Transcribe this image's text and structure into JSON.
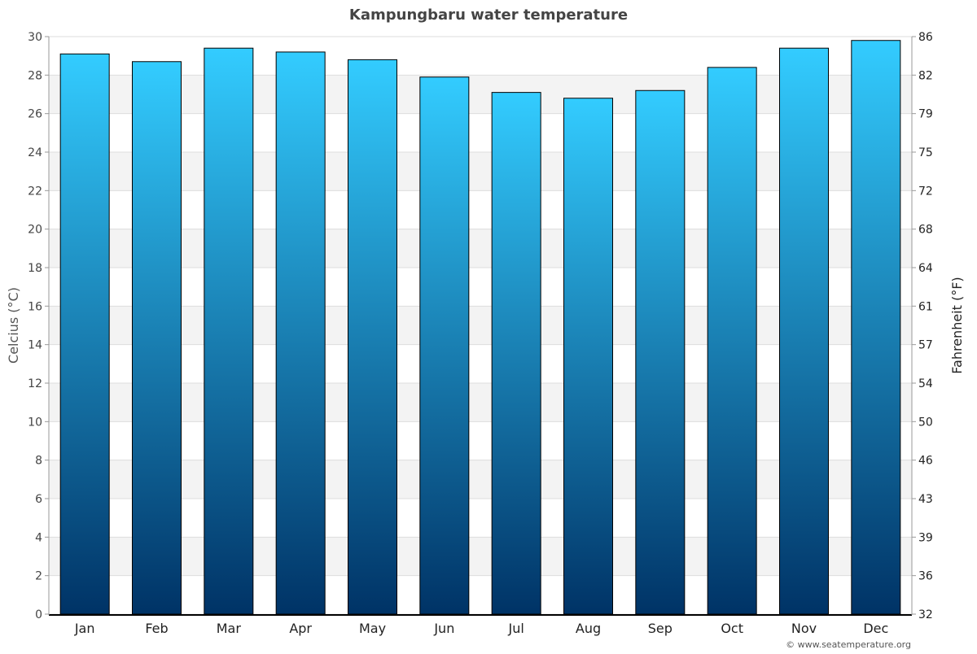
{
  "chart_data": {
    "type": "bar",
    "title": "Kampungbaru water temperature",
    "ylabel": "Celcius (°C)",
    "y2label": "Fahrenheit (°F)",
    "categories": [
      "Jan",
      "Feb",
      "Mar",
      "Apr",
      "May",
      "Jun",
      "Jul",
      "Aug",
      "Sep",
      "Oct",
      "Nov",
      "Dec"
    ],
    "values": [
      29.1,
      28.7,
      29.4,
      29.2,
      28.8,
      27.9,
      27.1,
      26.8,
      27.2,
      28.4,
      29.4,
      29.8
    ],
    "ylim": [
      0,
      30
    ],
    "yticks": [
      "0",
      "2",
      "4",
      "6",
      "8",
      "10",
      "12",
      "14",
      "16",
      "18",
      "20",
      "22",
      "24",
      "26",
      "28",
      "30"
    ],
    "y2ticks": [
      "32",
      "36",
      "39",
      "43",
      "46",
      "50",
      "54",
      "57",
      "61",
      "64",
      "68",
      "72",
      "75",
      "79",
      "82",
      "86"
    ],
    "grid": true,
    "colors": {
      "bar_top": "#33ccff",
      "bar_bottom": "#003366",
      "band": "#f3f3f3"
    }
  },
  "credit": "© www.seatemperature.org"
}
